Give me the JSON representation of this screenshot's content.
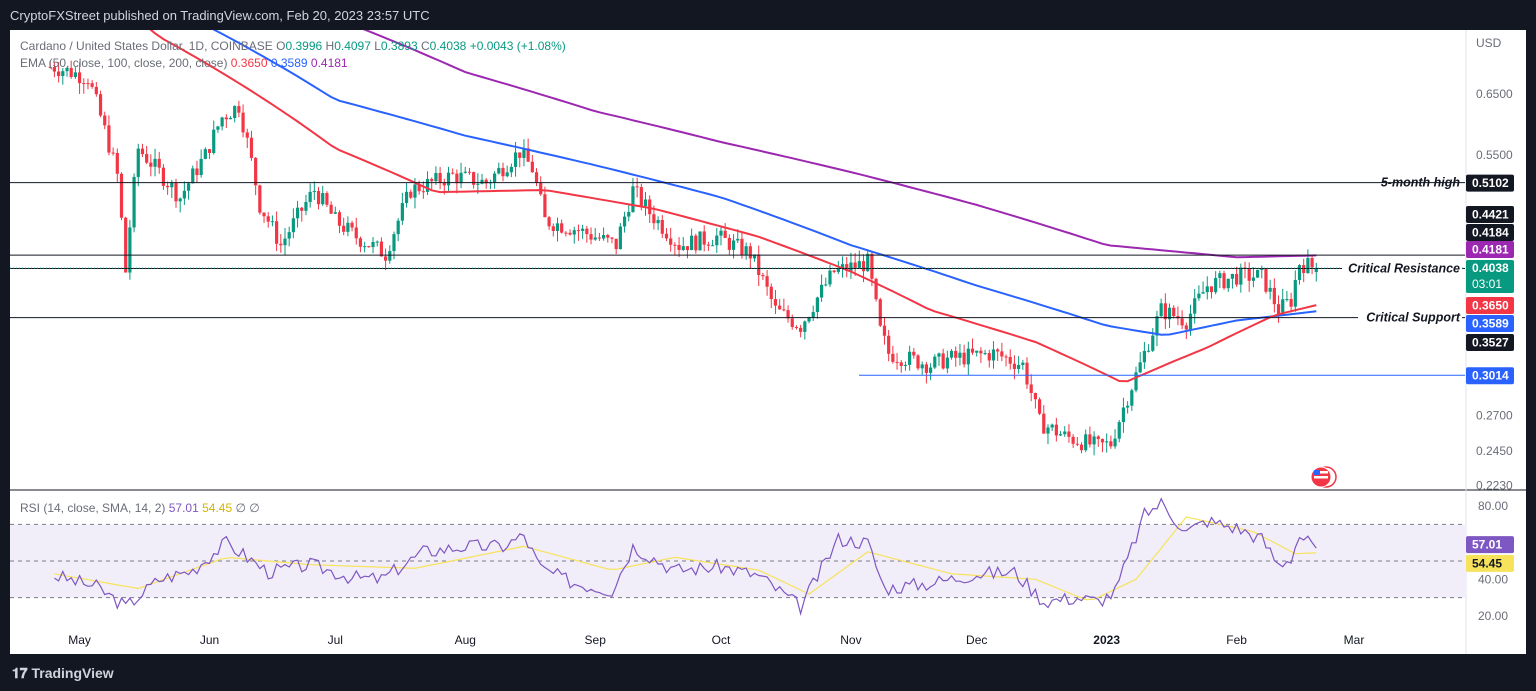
{
  "header": {
    "publisher": "CryptoFXStreet published on TradingView.com, Feb 20, 2023 23:57 UTC"
  },
  "footer": {
    "logo_text": "TradingView"
  },
  "legend": {
    "symbol": "Cardano / United States Dollar, 1D, COINBASE",
    "o_label": "O",
    "o": "0.3996",
    "h_label": "H",
    "h": "0.4097",
    "l_label": "L",
    "l": "0.3893",
    "c_label": "C",
    "c": "0.4038",
    "change": "+0.0043 (+1.08%)",
    "ema_label": "EMA (50, close, 100, close, 200, close)",
    "ema50": "0.3650",
    "ema100": "0.3589",
    "ema200": "0.4181"
  },
  "rsi_legend": {
    "label": "RSI (14, close, SMA, 14, 2)",
    "rsi": "57.01",
    "sma": "54.45",
    "extra": "∅ ∅"
  },
  "colors": {
    "up": "#089981",
    "down": "#f23645",
    "ema50": "#f23645",
    "ema100": "#2962ff",
    "ema200": "#9c27b0",
    "rsi": "#7e57c2",
    "rsi_sma": "#f7e25c",
    "price_box": "#089981",
    "support_blue": "#2962ff"
  },
  "chart_data": {
    "type": "candlestick",
    "currency_label": "USD",
    "x_axis_months": [
      "May",
      "Jun",
      "Jul",
      "Aug",
      "Sep",
      "Oct",
      "Nov",
      "Dec",
      "2023",
      "Feb",
      "Mar"
    ],
    "y_ticks": [
      "0.6500",
      "0.5500",
      "0.2700",
      "0.2450",
      "0.2230"
    ],
    "levels": [
      {
        "label": "5-month high",
        "value": "0.5102"
      },
      {
        "label": "",
        "value": "0.4421"
      },
      {
        "label": "",
        "value": "0.4184"
      },
      {
        "label": "Critical Resistance",
        "value": "0.4181"
      },
      {
        "label": "",
        "value": "0.4038"
      },
      {
        "label": "",
        "value": "0.3650"
      },
      {
        "label": "Critical Support",
        "value": "0.3589"
      },
      {
        "label": "",
        "value": "0.3527"
      },
      {
        "label": "",
        "value": "0.3014"
      }
    ],
    "countdown": "03:01",
    "anchors": {
      "close": [
        [
          "2022-04-25",
          0.7
        ],
        [
          "2022-05-03",
          0.68
        ],
        [
          "2022-05-10",
          0.52
        ],
        [
          "2022-05-12",
          0.4
        ],
        [
          "2022-05-15",
          0.56
        ],
        [
          "2022-05-25",
          0.49
        ],
        [
          "2022-05-31",
          0.55
        ],
        [
          "2022-06-04",
          0.61
        ],
        [
          "2022-06-08",
          0.63
        ],
        [
          "2022-06-13",
          0.48
        ],
        [
          "2022-06-18",
          0.43
        ],
        [
          "2022-06-26",
          0.5
        ],
        [
          "2022-07-01",
          0.46
        ],
        [
          "2022-07-06",
          0.44
        ],
        [
          "2022-07-13",
          0.42
        ],
        [
          "2022-07-19",
          0.5
        ],
        [
          "2022-07-29",
          0.52
        ],
        [
          "2022-08-06",
          0.51
        ],
        [
          "2022-08-14",
          0.555
        ],
        [
          "2022-08-17",
          0.53
        ],
        [
          "2022-08-20",
          0.46
        ],
        [
          "2022-08-27",
          0.45
        ],
        [
          "2022-09-06",
          0.43
        ],
        [
          "2022-09-10",
          0.5
        ],
        [
          "2022-09-14",
          0.47
        ],
        [
          "2022-09-21",
          0.43
        ],
        [
          "2022-09-30",
          0.44
        ],
        [
          "2022-10-08",
          0.42
        ],
        [
          "2022-10-14",
          0.36
        ],
        [
          "2022-10-20",
          0.345
        ],
        [
          "2022-10-28",
          0.4
        ],
        [
          "2022-11-05",
          0.41
        ],
        [
          "2022-11-08",
          0.34
        ],
        [
          "2022-11-10",
          0.32
        ],
        [
          "2022-11-20",
          0.31
        ],
        [
          "2022-11-24",
          0.315
        ],
        [
          "2022-12-05",
          0.32
        ],
        [
          "2022-12-12",
          0.31
        ],
        [
          "2022-12-16",
          0.265
        ],
        [
          "2022-12-22",
          0.255
        ],
        [
          "2022-12-30",
          0.248
        ],
        [
          "2023-01-02",
          0.25
        ],
        [
          "2023-01-09",
          0.31
        ],
        [
          "2023-01-14",
          0.36
        ],
        [
          "2023-01-20",
          0.35
        ],
        [
          "2023-01-25",
          0.385
        ],
        [
          "2023-02-01",
          0.395
        ],
        [
          "2023-02-07",
          0.395
        ],
        [
          "2023-02-11",
          0.36
        ],
        [
          "2023-02-14",
          0.37
        ],
        [
          "2023-02-16",
          0.41
        ],
        [
          "2023-02-20",
          0.4038
        ]
      ],
      "ema50": [
        [
          "2022-04-25",
          0.94
        ],
        [
          "2022-05-20",
          0.76
        ],
        [
          "2022-06-10",
          0.66
        ],
        [
          "2022-07-01",
          0.56
        ],
        [
          "2022-07-25",
          0.497
        ],
        [
          "2022-08-20",
          0.5
        ],
        [
          "2022-09-15",
          0.475
        ],
        [
          "2022-10-10",
          0.44
        ],
        [
          "2022-11-01",
          0.4
        ],
        [
          "2022-11-20",
          0.36
        ],
        [
          "2022-12-15",
          0.33
        ],
        [
          "2023-01-05",
          0.295
        ],
        [
          "2023-01-25",
          0.325
        ],
        [
          "2023-02-10",
          0.355
        ],
        [
          "2023-02-20",
          0.365
        ]
      ],
      "ema100": [
        [
          "2022-04-25",
          1.1
        ],
        [
          "2022-06-01",
          0.78
        ],
        [
          "2022-07-01",
          0.64
        ],
        [
          "2022-08-01",
          0.58
        ],
        [
          "2022-09-01",
          0.535
        ],
        [
          "2022-10-01",
          0.49
        ],
        [
          "2022-11-01",
          0.43
        ],
        [
          "2022-12-01",
          0.385
        ],
        [
          "2023-01-01",
          0.345
        ],
        [
          "2023-01-15",
          0.336
        ],
        [
          "2023-02-01",
          0.35
        ],
        [
          "2023-02-20",
          0.3589
        ]
      ],
      "ema200": [
        [
          "2022-04-25",
          1.4
        ],
        [
          "2022-06-01",
          1.0
        ],
        [
          "2022-07-01",
          0.8
        ],
        [
          "2022-08-01",
          0.69
        ],
        [
          "2022-09-01",
          0.62
        ],
        [
          "2022-10-01",
          0.57
        ],
        [
          "2022-11-01",
          0.525
        ],
        [
          "2022-12-01",
          0.48
        ],
        [
          "2023-01-01",
          0.43
        ],
        [
          "2023-02-01",
          0.416
        ],
        [
          "2023-02-20",
          0.4181
        ]
      ],
      "rsi": [
        [
          "2022-04-25",
          42
        ],
        [
          "2022-05-05",
          36
        ],
        [
          "2022-05-12",
          25
        ],
        [
          "2022-05-20",
          40
        ],
        [
          "2022-05-28",
          45
        ],
        [
          "2022-06-05",
          60
        ],
        [
          "2022-06-15",
          44
        ],
        [
          "2022-06-25",
          48
        ],
        [
          "2022-07-05",
          41
        ],
        [
          "2022-07-12",
          40
        ],
        [
          "2022-07-22",
          55
        ],
        [
          "2022-08-01",
          58
        ],
        [
          "2022-08-10",
          58
        ],
        [
          "2022-08-15",
          64
        ],
        [
          "2022-08-19",
          46
        ],
        [
          "2022-08-27",
          38
        ],
        [
          "2022-09-05",
          34
        ],
        [
          "2022-09-10",
          58
        ],
        [
          "2022-09-20",
          45
        ],
        [
          "2022-10-01",
          47
        ],
        [
          "2022-10-10",
          42
        ],
        [
          "2022-10-20",
          25
        ],
        [
          "2022-10-29",
          62
        ],
        [
          "2022-11-05",
          60
        ],
        [
          "2022-11-09",
          35
        ],
        [
          "2022-11-20",
          38
        ],
        [
          "2022-12-01",
          43
        ],
        [
          "2022-12-10",
          44
        ],
        [
          "2022-12-17",
          28
        ],
        [
          "2022-12-25",
          30
        ],
        [
          "2022-12-30",
          28
        ],
        [
          "2023-01-03",
          33
        ],
        [
          "2023-01-10",
          75
        ],
        [
          "2023-01-14",
          82
        ],
        [
          "2023-01-20",
          66
        ],
        [
          "2023-01-25",
          72
        ],
        [
          "2023-02-01",
          68
        ],
        [
          "2023-02-07",
          62
        ],
        [
          "2023-02-11",
          48
        ],
        [
          "2023-02-14",
          52
        ],
        [
          "2023-02-16",
          64
        ],
        [
          "2023-02-20",
          57.01
        ]
      ],
      "rsi_sma": [
        [
          "2022-04-25",
          43
        ],
        [
          "2022-05-15",
          35
        ],
        [
          "2022-06-05",
          52
        ],
        [
          "2022-06-25",
          48
        ],
        [
          "2022-07-20",
          46
        ],
        [
          "2022-08-15",
          58
        ],
        [
          "2022-09-05",
          45
        ],
        [
          "2022-09-20",
          52
        ],
        [
          "2022-10-10",
          45
        ],
        [
          "2022-10-22",
          32
        ],
        [
          "2022-11-05",
          55
        ],
        [
          "2022-11-25",
          43
        ],
        [
          "2022-12-15",
          40
        ],
        [
          "2022-12-28",
          28
        ],
        [
          "2023-01-08",
          40
        ],
        [
          "2023-01-20",
          74
        ],
        [
          "2023-02-05",
          66
        ],
        [
          "2023-02-15",
          54
        ],
        [
          "2023-02-20",
          54.45
        ]
      ]
    }
  }
}
